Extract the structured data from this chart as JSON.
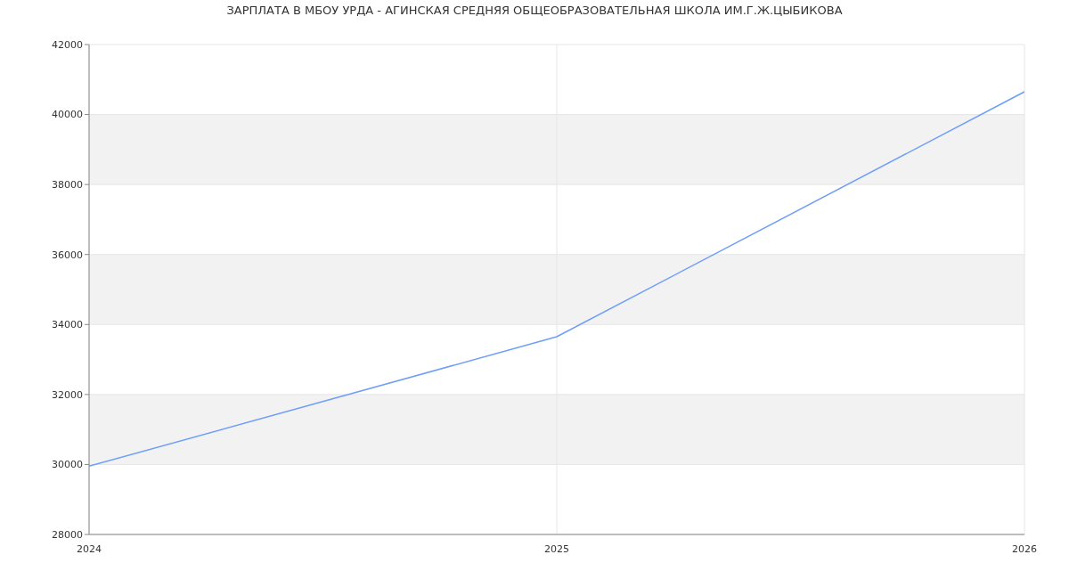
{
  "chart_data": {
    "type": "line",
    "title": "ЗАРПЛАТА В МБОУ УРДА - АГИНСКАЯ СРЕДНЯЯ ОБЩЕОБРАЗОВАТЕЛЬНАЯ ШКОЛА ИМ.Г.Ж.ЦЫБИКОВА",
    "x": [
      2024,
      2025,
      2026
    ],
    "series": [
      {
        "color": "#6f9ef7",
        "values": [
          29950,
          33650,
          40650
        ]
      }
    ],
    "xlim": [
      2024,
      2026
    ],
    "xticks": [
      2024,
      2025,
      2026
    ],
    "ylim": [
      28000,
      42000
    ],
    "yticks": [
      28000,
      30000,
      32000,
      34000,
      36000,
      38000,
      40000,
      42000
    ],
    "grid": true
  }
}
